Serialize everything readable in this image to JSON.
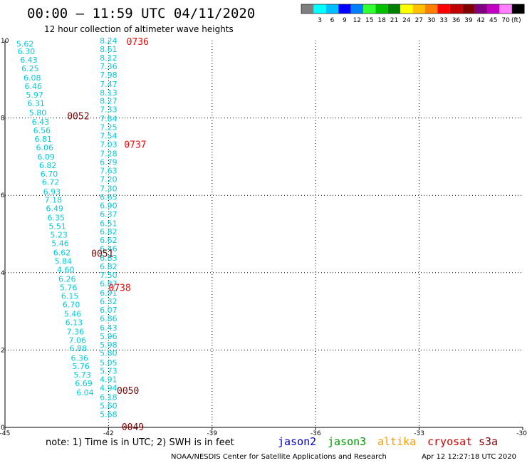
{
  "header": {
    "title": "00:00 — 11:59 UTC 04/11/2020",
    "subtitle": "12 hour collection of altimeter wave heights"
  },
  "legend": {
    "colors": [
      "#7f7f7f",
      "#00ffff",
      "#00bfff",
      "#0000ff",
      "#0080ff",
      "#33ff33",
      "#00c000",
      "#008000",
      "#ffff00",
      "#ffc000",
      "#ff8000",
      "#ff0000",
      "#c00000",
      "#800000",
      "#800080",
      "#c000c0",
      "#ff80ff",
      "#000000"
    ],
    "labels": [
      "3",
      "6",
      "9",
      "12",
      "15",
      "18",
      "21",
      "24",
      "27",
      "30",
      "33",
      "36",
      "39",
      "42",
      "45",
      "70"
    ],
    "unit": "(ft)"
  },
  "footer": {
    "note": "note:  1) Time is in UTC;  2) SWH is in feet",
    "credit": "NOAA/NESDIS Center for Satellite Applications and Research",
    "timestamp": "Apr 12 12:27:18 UTC 2020"
  },
  "missions": [
    {
      "name": "jason2",
      "color": "#0000cc"
    },
    {
      "name": "jason3",
      "color": "#009900"
    },
    {
      "name": "altika",
      "color": "#ff9900"
    },
    {
      "name": "cryosat",
      "color": "#cc0000"
    },
    {
      "name": "s3a",
      "color": "#800000"
    }
  ],
  "chart_data": {
    "type": "scatter",
    "xlim": [
      -45,
      -30
    ],
    "ylim": [
      0,
      10
    ],
    "x_ticks": [
      "-45",
      "-42",
      "-39",
      "-36",
      "-33",
      "-30"
    ],
    "y_ticks": [
      "0",
      "2",
      "4",
      "6",
      "8",
      "10"
    ],
    "grid": true,
    "value_color": "#00ccdd",
    "series": [
      {
        "points": [
          {
            "x": -44.42,
            "y": 9.92,
            "label": "5.62"
          },
          {
            "x": -44.38,
            "y": 9.72,
            "label": "6.30"
          },
          {
            "x": -44.31,
            "y": 9.5,
            "label": "6.43"
          },
          {
            "x": -44.27,
            "y": 9.28,
            "label": "6.25"
          },
          {
            "x": -44.21,
            "y": 9.04,
            "label": "6.08"
          },
          {
            "x": -44.18,
            "y": 8.82,
            "label": "6.46"
          },
          {
            "x": -44.14,
            "y": 8.6,
            "label": "5.97"
          },
          {
            "x": -44.1,
            "y": 8.38,
            "label": "6.31"
          },
          {
            "x": -44.05,
            "y": 8.14,
            "label": "5.80"
          },
          {
            "x": -43.97,
            "y": 7.9,
            "label": "6.43"
          },
          {
            "x": -43.93,
            "y": 7.68,
            "label": "6.56"
          },
          {
            "x": -43.89,
            "y": 7.46,
            "label": "6.81"
          },
          {
            "x": -43.85,
            "y": 7.24,
            "label": "6.06"
          },
          {
            "x": -43.81,
            "y": 7.0,
            "label": "6.09"
          },
          {
            "x": -43.76,
            "y": 6.78,
            "label": "6.82"
          },
          {
            "x": -43.72,
            "y": 6.56,
            "label": "6.70"
          },
          {
            "x": -43.68,
            "y": 6.34,
            "label": "6.72"
          },
          {
            "x": -43.64,
            "y": 6.1,
            "label": "6.93"
          },
          {
            "x": -43.6,
            "y": 5.88,
            "label": "7.18"
          },
          {
            "x": -43.56,
            "y": 5.66,
            "label": "6.49"
          },
          {
            "x": -43.52,
            "y": 5.42,
            "label": "6.35"
          },
          {
            "x": -43.48,
            "y": 5.2,
            "label": "5.51"
          },
          {
            "x": -43.44,
            "y": 4.98,
            "label": "5.23"
          },
          {
            "x": -43.4,
            "y": 4.76,
            "label": "5.46"
          },
          {
            "x": -43.35,
            "y": 4.52,
            "label": "6.62"
          },
          {
            "x": -43.31,
            "y": 4.3,
            "label": "5.84"
          },
          {
            "x": -43.24,
            "y": 4.08,
            "label": "4.60"
          },
          {
            "x": -43.2,
            "y": 3.84,
            "label": "6.26"
          },
          {
            "x": -43.16,
            "y": 3.62,
            "label": "5.76"
          },
          {
            "x": -43.12,
            "y": 3.4,
            "label": "6.15"
          },
          {
            "x": -43.08,
            "y": 3.18,
            "label": "6.70"
          },
          {
            "x": -43.04,
            "y": 2.94,
            "label": "5.46"
          },
          {
            "x": -43.0,
            "y": 2.72,
            "label": "6.13"
          },
          {
            "x": -42.96,
            "y": 2.48,
            "label": "7.36"
          },
          {
            "x": -42.9,
            "y": 2.26,
            "label": "7.06"
          },
          {
            "x": -42.88,
            "y": 2.04,
            "label": "6.88"
          },
          {
            "x": -42.84,
            "y": 1.8,
            "label": "6.36"
          },
          {
            "x": -42.8,
            "y": 1.58,
            "label": "5.76"
          },
          {
            "x": -42.76,
            "y": 1.36,
            "label": "5.73"
          },
          {
            "x": -42.72,
            "y": 1.14,
            "label": "6.69"
          },
          {
            "x": -42.68,
            "y": 0.9,
            "label": "6.04"
          }
        ]
      },
      {
        "points": [
          {
            "x": -42.0,
            "y": 10.0,
            "label": "8.24"
          },
          {
            "x": -42.0,
            "y": 9.78,
            "label": "8.61"
          },
          {
            "x": -42.0,
            "y": 9.56,
            "label": "8.12"
          },
          {
            "x": -42.0,
            "y": 9.34,
            "label": "7.36"
          },
          {
            "x": -42.0,
            "y": 9.12,
            "label": "7.98"
          },
          {
            "x": -42.0,
            "y": 8.88,
            "label": "7.47"
          },
          {
            "x": -42.0,
            "y": 8.66,
            "label": "8.13"
          },
          {
            "x": -42.0,
            "y": 8.44,
            "label": "8.27"
          },
          {
            "x": -42.0,
            "y": 8.22,
            "label": "7.33"
          },
          {
            "x": -42.0,
            "y": 7.98,
            "label": "7.84"
          },
          {
            "x": -42.0,
            "y": 7.76,
            "label": "7.25"
          },
          {
            "x": -42.0,
            "y": 7.54,
            "label": "7.54"
          },
          {
            "x": -42.0,
            "y": 7.32,
            "label": "7.03"
          },
          {
            "x": -42.0,
            "y": 7.08,
            "label": "7.28"
          },
          {
            "x": -42.0,
            "y": 6.86,
            "label": "6.79"
          },
          {
            "x": -42.0,
            "y": 6.64,
            "label": "7.63"
          },
          {
            "x": -42.0,
            "y": 6.42,
            "label": "7.20"
          },
          {
            "x": -42.0,
            "y": 6.18,
            "label": "7.30"
          },
          {
            "x": -42.0,
            "y": 5.96,
            "label": "6.65"
          },
          {
            "x": -42.0,
            "y": 5.74,
            "label": "6.90"
          },
          {
            "x": -42.0,
            "y": 5.52,
            "label": "6.37"
          },
          {
            "x": -42.0,
            "y": 5.28,
            "label": "6.51"
          },
          {
            "x": -42.0,
            "y": 5.06,
            "label": "6.82"
          },
          {
            "x": -42.0,
            "y": 4.84,
            "label": "6.62"
          },
          {
            "x": -42.0,
            "y": 4.62,
            "label": "6.46"
          },
          {
            "x": -42.0,
            "y": 4.38,
            "label": "6.83"
          },
          {
            "x": -42.0,
            "y": 4.16,
            "label": "6.82"
          },
          {
            "x": -42.0,
            "y": 3.94,
            "label": "7.50"
          },
          {
            "x": -42.0,
            "y": 3.72,
            "label": "6.87"
          },
          {
            "x": -42.0,
            "y": 3.48,
            "label": "6.91"
          },
          {
            "x": -42.0,
            "y": 3.26,
            "label": "6.32"
          },
          {
            "x": -42.0,
            "y": 3.04,
            "label": "6.07"
          },
          {
            "x": -42.0,
            "y": 2.82,
            "label": "6.86"
          },
          {
            "x": -42.0,
            "y": 2.58,
            "label": "6.43"
          },
          {
            "x": -42.0,
            "y": 2.36,
            "label": "5.96"
          },
          {
            "x": -42.0,
            "y": 2.14,
            "label": "5.98"
          },
          {
            "x": -42.0,
            "y": 1.92,
            "label": "5.80"
          },
          {
            "x": -42.0,
            "y": 1.68,
            "label": "5.05"
          },
          {
            "x": -42.0,
            "y": 1.46,
            "label": "5.73"
          },
          {
            "x": -42.0,
            "y": 1.24,
            "label": "4.91"
          },
          {
            "x": -42.0,
            "y": 1.02,
            "label": "4.94"
          },
          {
            "x": -42.0,
            "y": 0.78,
            "label": "6.18"
          },
          {
            "x": -42.0,
            "y": 0.56,
            "label": "5.60"
          },
          {
            "x": -42.0,
            "y": 0.34,
            "label": "5.68"
          }
        ]
      }
    ],
    "time_labels": [
      {
        "x": -41.48,
        "y": 9.98,
        "label": "0736",
        "color": "#ff0000"
      },
      {
        "x": -43.2,
        "y": 8.06,
        "label": "0052",
        "color": "#800000"
      },
      {
        "x": -41.55,
        "y": 7.32,
        "label": "0737",
        "color": "#ff0000"
      },
      {
        "x": -42.5,
        "y": 4.5,
        "label": "0051",
        "color": "#800000"
      },
      {
        "x": -42.0,
        "y": 3.62,
        "label": "0738",
        "color": "#ff0000"
      },
      {
        "x": -41.76,
        "y": 0.96,
        "label": "0050",
        "color": "#800000"
      },
      {
        "x": -41.62,
        "y": 0.02,
        "label": "0049",
        "color": "#800000"
      }
    ]
  }
}
